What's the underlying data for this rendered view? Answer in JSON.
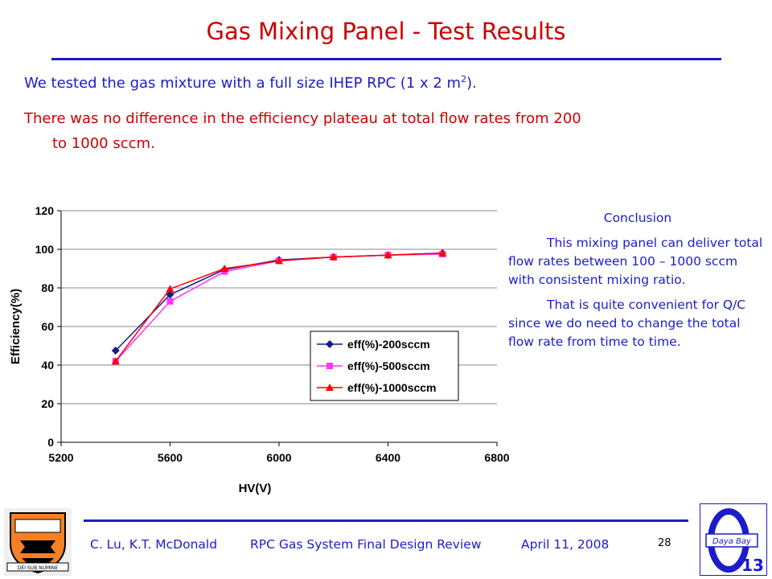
{
  "slide": {
    "title": "Gas Mixing Panel - Test Results",
    "line1_pre": "We tested the gas mixture with a full size IHEP RPC (1 x 2 m",
    "line1_sup": "2",
    "line1_post": ").",
    "line2a": "There was no difference in the efficiency plateau at total flow rates from 200",
    "line2b": "to 1000 sccm.",
    "conclusion_head": "Conclusion",
    "conclusion_p1": "This mixing panel can deliver total flow rates between 100 – 1000 sccm with consistent mixing ratio.",
    "conclusion_p2": "That is quite convenient for Q/C since we do need to change the total flow rate from time to time.",
    "footer_authors": "C. Lu, K.T. McDonald",
    "footer_event": "RPC Gas System Final Design Review",
    "footer_date": "April 11, 2008",
    "page_number": "28",
    "logo_right_text": "Daya Bay",
    "logo_right_number": "13",
    "logo_left_text": "DEI SUB NUMINE"
  },
  "colors": {
    "title": "#cc0000",
    "accent": "#1c1ccc"
  },
  "chart_data": {
    "type": "line",
    "xlabel": "HV(V)",
    "ylabel": "Efficiency(%)",
    "xlim": [
      5200,
      6800
    ],
    "ylim": [
      0,
      120
    ],
    "xticks": [
      5200,
      5600,
      6000,
      6400,
      6800
    ],
    "yticks": [
      0,
      20,
      40,
      60,
      80,
      100,
      120
    ],
    "grid": "horizontal",
    "legend_position": "lower-right",
    "series": [
      {
        "name": "eff(%)-200sccm",
        "color": "#1a1a8c",
        "marker": "diamond",
        "x": [
          5400,
          5600,
          5800,
          6000,
          6200,
          6400,
          6600
        ],
        "y": [
          47.5,
          76.5,
          89.5,
          94.5,
          96,
          97,
          98
        ]
      },
      {
        "name": "eff(%)-500sccm",
        "color": "#ff33ff",
        "marker": "square",
        "x": [
          5400,
          5600,
          5800,
          6000,
          6200,
          6400,
          6600
        ],
        "y": [
          42,
          73,
          88.5,
          94,
          96,
          97,
          97.5
        ]
      },
      {
        "name": "eff(%)-1000sccm",
        "color": "#ff0000",
        "marker": "triangle",
        "x": [
          5400,
          5600,
          5800,
          6000,
          6200,
          6400,
          6600
        ],
        "y": [
          42,
          79.5,
          90,
          94,
          96,
          97,
          98
        ]
      }
    ]
  }
}
